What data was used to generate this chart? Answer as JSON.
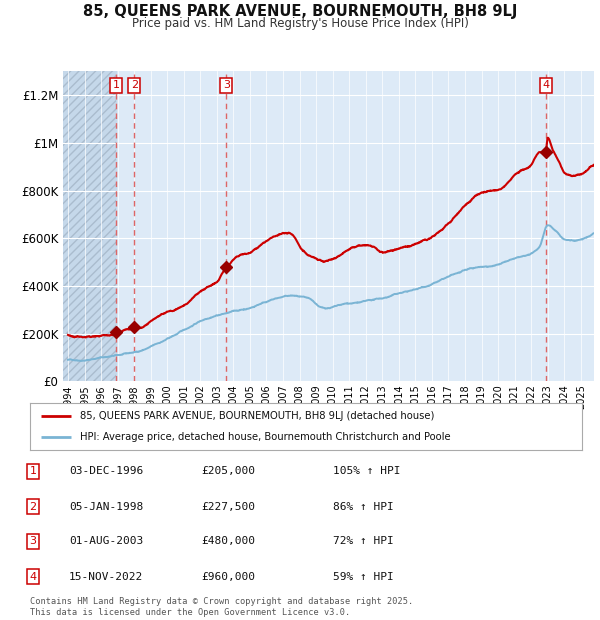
{
  "title_line1": "85, QUEENS PARK AVENUE, BOURNEMOUTH, BH8 9LJ",
  "title_line2": "Price paid vs. HM Land Registry's House Price Index (HPI)",
  "x_start_year": 1993.7,
  "x_end_year": 2025.8,
  "y_min": 0,
  "y_max": 1300000,
  "y_ticks": [
    0,
    200000,
    400000,
    600000,
    800000,
    1000000,
    1200000
  ],
  "y_tick_labels": [
    "£0",
    "£200K",
    "£400K",
    "£600K",
    "£800K",
    "£1M",
    "£1.2M"
  ],
  "hpi_color": "#7ab4d4",
  "price_color": "#cc0000",
  "bg_color": "#ddeaf7",
  "sale_dates_decimal": [
    1996.92,
    1998.02,
    2003.58,
    2022.87
  ],
  "sale_prices": [
    205000,
    227500,
    480000,
    960000
  ],
  "sale_labels": [
    "1",
    "2",
    "3",
    "4"
  ],
  "legend_price_label": "85, QUEENS PARK AVENUE, BOURNEMOUTH, BH8 9LJ (detached house)",
  "legend_hpi_label": "HPI: Average price, detached house, Bournemouth Christchurch and Poole",
  "table_rows": [
    [
      "1",
      "03-DEC-1996",
      "£205,000",
      "105% ↑ HPI"
    ],
    [
      "2",
      "05-JAN-1998",
      "£227,500",
      "86% ↑ HPI"
    ],
    [
      "3",
      "01-AUG-2003",
      "£480,000",
      "72% ↑ HPI"
    ],
    [
      "4",
      "15-NOV-2022",
      "£960,000",
      "59% ↑ HPI"
    ]
  ],
  "footer_text": "Contains HM Land Registry data © Crown copyright and database right 2025.\nThis data is licensed under the Open Government Licence v3.0.",
  "grid_color": "#ffffff",
  "dashed_line_color": "#dd6666"
}
